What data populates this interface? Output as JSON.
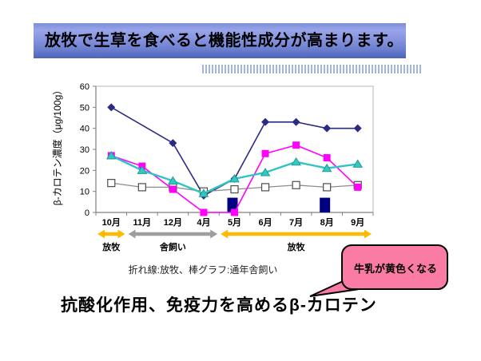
{
  "title": {
    "text": "放牧で生草を食べると機能性成分が高まります。"
  },
  "caption": {
    "text": "折れ線:放牧、棒グラフ:通年舎飼い"
  },
  "callout": {
    "text": "牛乳が黄色くなる",
    "fill": "#FA7BA3",
    "border": "#000000"
  },
  "heading": {
    "text": "抗酸化作用、免疫力を高めるβ-カロテン"
  },
  "colors": {
    "banner_top": "#98a5e9",
    "banner_bottom": "#4c64b6",
    "axis": "#808080",
    "plot_border": "#b4b4b4"
  },
  "chart_data": {
    "type": "combo-line-bar",
    "title": "",
    "xlabel": "",
    "ylabel": "β-カロテン濃度（μg/100g）",
    "categories": [
      "10月",
      "11月",
      "12月",
      "4月",
      "5月",
      "6月",
      "7月",
      "8月",
      "9月"
    ],
    "ylim": [
      0,
      60
    ],
    "yticks": [
      0,
      10,
      20,
      30,
      40,
      50,
      60
    ],
    "grid": false,
    "legend": "none",
    "legend_note": "折れ線:放牧、棒グラフ:通年舎飼い",
    "series": [
      {
        "name": "line-diamond-grazing",
        "type": "line",
        "marker": "diamond",
        "color": "#2B2B85",
        "marker_color": "#2B2B85",
        "values": [
          50,
          null,
          33,
          8,
          16,
          43,
          43,
          40,
          40
        ]
      },
      {
        "name": "line-open-square-grazing",
        "type": "line",
        "marker": "open-square",
        "color": "#8C8C8C",
        "marker_color": "#FFFFFF",
        "values": [
          14,
          12,
          12,
          10,
          11,
          12,
          13,
          12,
          13
        ]
      },
      {
        "name": "line-square-grazing",
        "type": "line",
        "marker": "square",
        "color": "#FF00FF",
        "marker_color": "#FF00FF",
        "values": [
          27,
          22,
          11,
          0,
          0,
          28,
          32,
          26,
          12
        ]
      },
      {
        "name": "line-triangle-grazing",
        "type": "line",
        "marker": "triangle",
        "color": "#2FC3C3",
        "marker_color": "#35C8C0",
        "values": [
          27,
          20,
          15,
          9,
          16,
          19,
          24,
          21,
          23
        ]
      },
      {
        "name": "bar-year-round-housed",
        "type": "bar",
        "marker": "none",
        "color": "#000080",
        "values": [
          null,
          null,
          null,
          null,
          7,
          null,
          null,
          7,
          null
        ]
      }
    ],
    "periods": [
      {
        "label": "放牧",
        "from": "10月",
        "to": "10月",
        "color": "#FFB900"
      },
      {
        "label": "舎飼い",
        "from": "11月",
        "to": "4月",
        "color": "#9E9E9E"
      },
      {
        "label": "放牧",
        "from": "5月",
        "to": "9月",
        "color": "#FFB900"
      }
    ]
  }
}
